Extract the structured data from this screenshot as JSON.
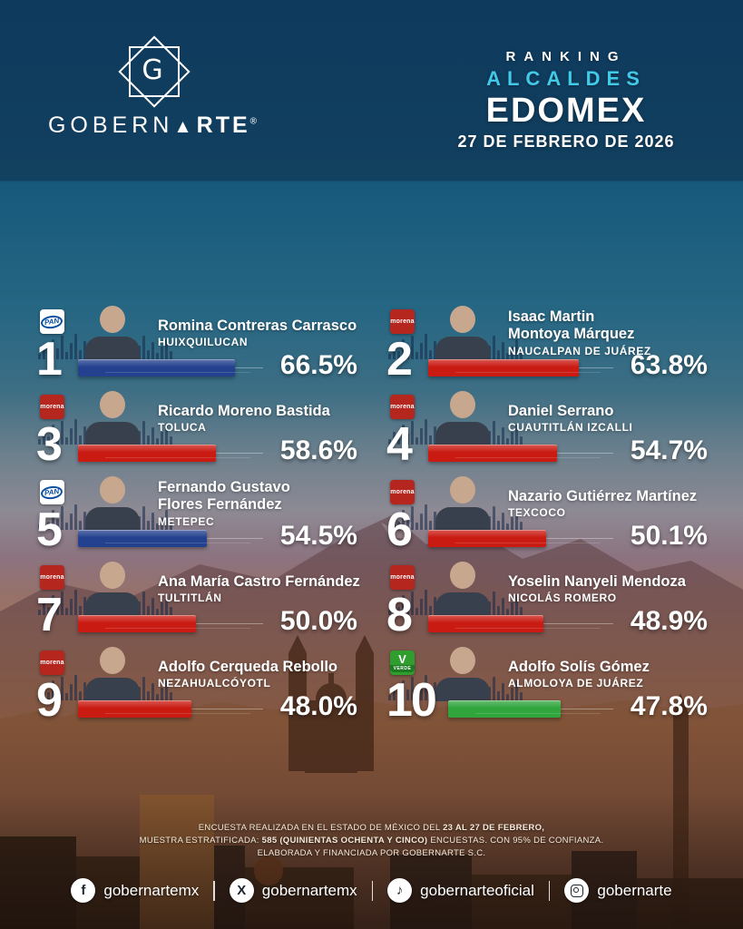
{
  "header": {
    "brand": {
      "monogram": "G",
      "wordmark_1": "GOBERN",
      "wordmark_a": "▲",
      "wordmark_2": "RTE",
      "registered": "®"
    },
    "title": {
      "kicker": "RANKING",
      "subtitle": "ALCALDES",
      "main": "EDOMEX",
      "date": "27 DE FEBRERO DE 2026"
    }
  },
  "colors": {
    "accent_cyan": "#41c9e8",
    "PAN": "#24418f",
    "MORENA": "#c91b12",
    "VERDE": "#2fa53c",
    "pan_logo_blue": "#0b50a0",
    "morena_logo_red": "#b5261e",
    "verde_logo_green": "#2f9e2f"
  },
  "parties": {
    "PAN": {
      "label": "PAN"
    },
    "MORENA": {
      "label": "morena"
    },
    "VERDE": {
      "glyph": "V",
      "label": "VERDE"
    }
  },
  "ranking": [
    {
      "rank": "1",
      "name": "Romina Contreras Carrasco",
      "municipality": "HUIXQUILUCAN",
      "party": "PAN",
      "value": 66.5,
      "value_label": "66.5%"
    },
    {
      "rank": "2",
      "name": "Isaac Martin\nMontoya Márquez",
      "municipality": "NAUCALPAN DE JUÁREZ",
      "party": "MORENA",
      "value": 63.8,
      "value_label": "63.8%"
    },
    {
      "rank": "3",
      "name": "Ricardo Moreno Bastida",
      "municipality": "TOLUCA",
      "party": "MORENA",
      "value": 58.6,
      "value_label": "58.6%"
    },
    {
      "rank": "4",
      "name": "Daniel Serrano",
      "municipality": "CUAUTITLÁN IZCALLI",
      "party": "MORENA",
      "value": 54.7,
      "value_label": "54.7%"
    },
    {
      "rank": "5",
      "name": "Fernando Gustavo\nFlores Fernández",
      "municipality": "METEPEC",
      "party": "PAN",
      "value": 54.5,
      "value_label": "54.5%"
    },
    {
      "rank": "6",
      "name": "Nazario Gutiérrez Martínez",
      "municipality": "TEXCOCO",
      "party": "MORENA",
      "value": 50.1,
      "value_label": "50.1%"
    },
    {
      "rank": "7",
      "name": "Ana María Castro Fernández",
      "municipality": "TULTITLÁN",
      "party": "MORENA",
      "value": 50.0,
      "value_label": "50.0%"
    },
    {
      "rank": "8",
      "name": "Yoselin Nanyeli Mendoza",
      "municipality": "NICOLÁS ROMERO",
      "party": "MORENA",
      "value": 48.9,
      "value_label": "48.9%"
    },
    {
      "rank": "9",
      "name": "Adolfo Cerqueda Rebollo",
      "municipality": "NEZAHUALCÓYOTL",
      "party": "MORENA",
      "value": 48.0,
      "value_label": "48.0%"
    },
    {
      "rank": "10",
      "name": "Adolfo Solís Gómez",
      "municipality": "ALMOLOYA DE JUÁREZ",
      "party": "VERDE",
      "value": 47.8,
      "value_label": "47.8%"
    }
  ],
  "footnote": {
    "l1a": "ENCUESTA REALIZADA EN EL ESTADO DE MÉXICO DEL ",
    "l1b": "23 AL 27 DE FEBRERO,",
    "l2a": "MUESTRA ESTRATIFICADA: ",
    "l2b": "585 (QUINIENTAS OCHENTA Y CINCO)",
    "l2c": " ENCUESTAS. CON 95% DE CONFIANZA.",
    "l3": "ELABORADA Y FINANCIADA POR GOBERNARTE S.C."
  },
  "social": [
    {
      "network": "facebook",
      "icon_glyph": "f",
      "handle": "gobernartemx"
    },
    {
      "network": "x",
      "icon_glyph": "X",
      "handle": "gobernartemx"
    },
    {
      "network": "tiktok",
      "icon_glyph": "♪",
      "handle": "gobernarteoficial"
    },
    {
      "network": "instagram",
      "handle": "gobernarte"
    }
  ],
  "chart_data": {
    "type": "bar",
    "orientation": "horizontal",
    "title": "RANKING ALCALDES EDOMEX",
    "subtitle": "27 DE FEBRERO DE 2026",
    "unit": "%",
    "xlim": [
      0,
      100
    ],
    "categories": [
      "Romina Contreras Carrasco — Huixquilucan",
      "Isaac Martin Montoya Márquez — Naucalpan de Juárez",
      "Ricardo Moreno Bastida — Toluca",
      "Daniel Serrano — Cuautitlán Izcalli",
      "Fernando Gustavo Flores Fernández — Metepec",
      "Nazario Gutiérrez Martínez — Texcoco",
      "Ana María Castro Fernández — Tultitlán",
      "Yoselin Nanyeli Mendoza — Nicolás Romero",
      "Adolfo Cerqueda Rebollo — Nezahualcóyotl",
      "Adolfo Solís Gómez — Almoloya de Juárez"
    ],
    "values": [
      66.5,
      63.8,
      58.6,
      54.7,
      54.5,
      50.1,
      50.0,
      48.9,
      48.0,
      47.8
    ],
    "parties": [
      "PAN",
      "MORENA",
      "MORENA",
      "MORENA",
      "PAN",
      "MORENA",
      "MORENA",
      "MORENA",
      "MORENA",
      "VERDE"
    ],
    "bar_colors": {
      "PAN": "#24418f",
      "MORENA": "#c91b12",
      "VERDE": "#2fa53c"
    }
  }
}
